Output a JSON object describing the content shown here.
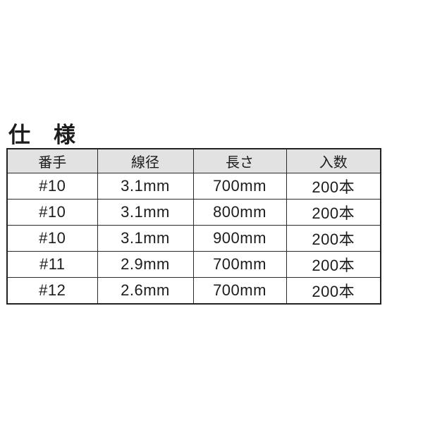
{
  "page": {
    "background": "#ffffff",
    "header_bg": "#e2e2e2",
    "border_color": "#2b2b2b",
    "text_color": "#1c1c1c"
  },
  "title": "仕　様",
  "table": {
    "columns": [
      "番手",
      "線径",
      "長さ",
      "入数"
    ],
    "rows": [
      [
        "#10",
        "3.1mm",
        "700mm",
        "200本"
      ],
      [
        "#10",
        "3.1mm",
        "800mm",
        "200本"
      ],
      [
        "#10",
        "3.1mm",
        "900mm",
        "200本"
      ],
      [
        "#11",
        "2.9mm",
        "700mm",
        "200本"
      ],
      [
        "#12",
        "2.6mm",
        "700mm",
        "200本"
      ]
    ]
  }
}
